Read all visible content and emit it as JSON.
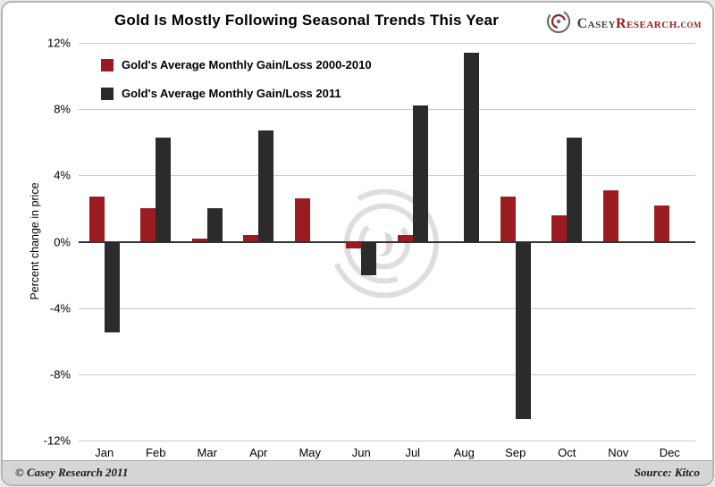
{
  "header": {
    "title": "Gold Is Mostly Following Seasonal Trends This Year",
    "logo": {
      "brand_primary": "Casey",
      "brand_secondary": "Research",
      "brand_suffix": ".com"
    }
  },
  "chart_data": {
    "type": "bar",
    "title": "Gold Is Mostly Following Seasonal Trends This Year",
    "xlabel": "",
    "ylabel": "Percent change in price",
    "categories": [
      "Jan",
      "Feb",
      "Mar",
      "Apr",
      "May",
      "Jun",
      "Jul",
      "Aug",
      "Sep",
      "Oct",
      "Nov",
      "Dec"
    ],
    "series": [
      {
        "name": "Gold's Average Monthly Gain/Loss 2000-2010",
        "color": "#9a1c20",
        "values": [
          2.7,
          2.0,
          0.2,
          0.4,
          2.6,
          -0.4,
          0.4,
          0,
          2.7,
          1.6,
          3.1,
          2.2
        ]
      },
      {
        "name": "Gold's Average Monthly Gain/Loss 2011",
        "color": "#2b2b2b",
        "values": [
          -5.5,
          6.3,
          2.0,
          6.7,
          0,
          -2.0,
          8.2,
          11.4,
          -10.7,
          6.3,
          0,
          0
        ]
      }
    ],
    "ylim": [
      -12,
      12
    ],
    "ytick_step": 4,
    "yticks": [
      "12%",
      "8%",
      "4%",
      "0%",
      "-4%",
      "-8%",
      "-12%"
    ],
    "grid": true,
    "legend_position": "top-left-inside"
  },
  "footer": {
    "copyright": "© Casey Research 2011",
    "source": "Source: Kitco"
  }
}
